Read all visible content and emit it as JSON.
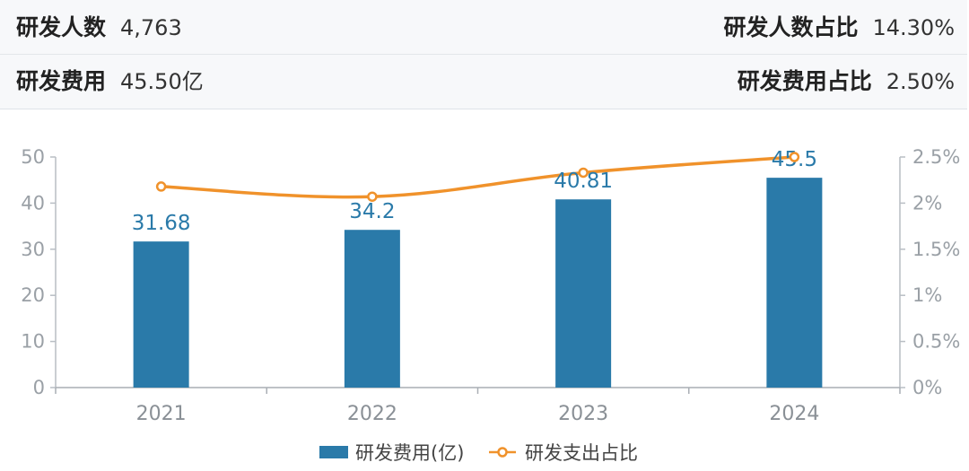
{
  "stats": {
    "rd_staff_label": "研发人数",
    "rd_staff_value": "4,763",
    "rd_staff_ratio_label": "研发人数占比",
    "rd_staff_ratio_value": "14.30%",
    "rd_expense_label": "研发费用",
    "rd_expense_value": "45.50亿",
    "rd_expense_ratio_label": "研发费用占比",
    "rd_expense_ratio_value": "2.50%"
  },
  "chart_data": {
    "type": "bar",
    "categories": [
      "2021",
      "2022",
      "2023",
      "2024"
    ],
    "series": [
      {
        "name": "研发费用(亿)",
        "type": "bar",
        "axis": "left",
        "values": [
          31.68,
          34.2,
          40.81,
          45.5
        ],
        "data_labels": [
          "31.68",
          "34.2",
          "40.81",
          "45.5"
        ],
        "color": "#2a7aa9"
      },
      {
        "name": "研发支出占比",
        "type": "line",
        "axis": "right",
        "values": [
          2.18,
          2.07,
          2.33,
          2.5
        ],
        "color": "#f0922b"
      }
    ],
    "y_left": {
      "range": [
        0,
        50
      ],
      "ticks": [
        "0",
        "10",
        "20",
        "30",
        "40",
        "50"
      ]
    },
    "y_right": {
      "range": [
        0,
        2.5
      ],
      "ticks": [
        "0%",
        "0.5%",
        "1%",
        "1.5%",
        "2%",
        "2.5%"
      ]
    },
    "grid": false,
    "legend": "bottom"
  }
}
